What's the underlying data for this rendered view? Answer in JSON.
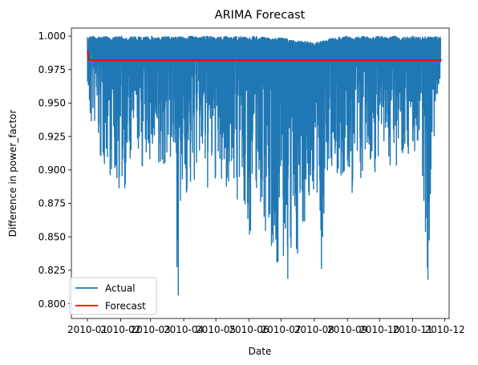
{
  "chart_data": {
    "type": "line",
    "title": "ARIMA Forecast",
    "xlabel": "Date",
    "ylabel": "Difference in power_factor",
    "x_ticks": [
      "2010-01",
      "2010-02",
      "2010-03",
      "2010-04",
      "2010-05",
      "2010-06",
      "2010-07",
      "2010-08",
      "2010-09",
      "2010-10",
      "2010-11",
      "2010-12"
    ],
    "y_ticks": [
      "0.800",
      "0.825",
      "0.850",
      "0.875",
      "0.900",
      "0.925",
      "0.950",
      "0.975",
      "1.000"
    ],
    "xlim": [
      "2009-12-17",
      "2010-12-05"
    ],
    "ylim": [
      0.789,
      1.006
    ],
    "grid": false,
    "legend": {
      "position": "lower-left",
      "entries": [
        "Actual",
        "Forecast"
      ]
    },
    "series": [
      {
        "name": "Actual",
        "color": "#1f77b4",
        "note_style": "dense oscillating series; approximate envelope",
        "x": [
          "2010-01-01",
          "2010-01-03",
          "2010-01-06",
          "2010-01-10",
          "2010-01-14",
          "2010-01-19",
          "2010-01-24",
          "2010-02-01",
          "2010-02-08",
          "2010-02-15",
          "2010-02-22",
          "2010-03-01",
          "2010-03-08",
          "2010-03-15",
          "2010-03-22",
          "2010-03-27",
          "2010-04-01",
          "2010-04-08",
          "2010-04-15",
          "2010-04-22",
          "2010-05-01",
          "2010-05-08",
          "2010-05-15",
          "2010-05-22",
          "2010-06-01",
          "2010-06-08",
          "2010-06-15",
          "2010-06-22",
          "2010-07-01",
          "2010-07-08",
          "2010-07-15",
          "2010-07-22",
          "2010-08-01",
          "2010-08-08",
          "2010-08-15",
          "2010-08-22",
          "2010-09-01",
          "2010-09-08",
          "2010-09-15",
          "2010-09-22",
          "2010-10-01",
          "2010-10-08",
          "2010-10-15",
          "2010-10-22",
          "2010-11-01",
          "2010-11-08",
          "2010-11-15",
          "2010-11-20",
          "2010-11-24",
          "2010-11-27"
        ],
        "upper": [
          0.999,
          1.0,
          1.0,
          1.0,
          0.999,
          1.0,
          0.999,
          1.0,
          0.999,
          1.0,
          0.999,
          1.0,
          0.999,
          1.0,
          0.999,
          1.0,
          0.999,
          1.0,
          0.999,
          1.0,
          0.999,
          1.0,
          0.999,
          1.0,
          0.999,
          1.0,
          0.999,
          0.998,
          0.999,
          0.998,
          0.996,
          0.997,
          0.995,
          0.996,
          0.998,
          0.999,
          1.0,
          0.999,
          1.0,
          0.999,
          1.0,
          0.999,
          1.0,
          0.999,
          1.0,
          0.999,
          1.0,
          0.999,
          1.0,
          1.0
        ],
        "lower": [
          0.965,
          0.915,
          0.935,
          0.92,
          0.893,
          0.905,
          0.89,
          0.88,
          0.888,
          0.917,
          0.895,
          0.905,
          0.873,
          0.905,
          0.9,
          0.8,
          0.88,
          0.875,
          0.905,
          0.88,
          0.888,
          0.88,
          0.893,
          0.87,
          0.845,
          0.88,
          0.858,
          0.835,
          0.82,
          0.805,
          0.83,
          0.855,
          0.88,
          0.818,
          0.905,
          0.88,
          0.885,
          0.875,
          0.89,
          0.9,
          0.895,
          0.905,
          0.9,
          0.912,
          0.91,
          0.905,
          0.812,
          0.91,
          0.935,
          0.945
        ]
      },
      {
        "name": "Forecast",
        "color": "#ff0000",
        "x": [
          "2010-01-01",
          "2010-01-02",
          "2010-01-03",
          "2010-11-28"
        ],
        "y": [
          0.989,
          0.983,
          0.982,
          0.982
        ]
      }
    ]
  }
}
